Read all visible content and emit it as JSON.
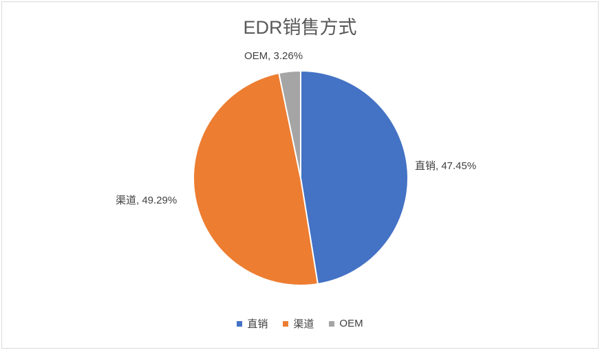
{
  "chart_data": {
    "type": "pie",
    "title": "EDR销售方式",
    "categories": [
      "直销",
      "渠道",
      "OEM"
    ],
    "values": [
      47.45,
      49.29,
      3.26
    ],
    "unit": "%",
    "data_labels": [
      "直销, 47.45%",
      "渠道, 49.29%",
      "OEM, 3.26%"
    ],
    "colors": [
      "#4472C4",
      "#ED7D31",
      "#A5A5A5"
    ],
    "title_color": "#595959",
    "label_color": "#404040",
    "slice_border_color": "#FFFFFF",
    "start_angle_deg": 0,
    "direction": "clockwise",
    "legend": {
      "position": "bottom",
      "entries": [
        "直销",
        "渠道",
        "OEM"
      ]
    }
  }
}
